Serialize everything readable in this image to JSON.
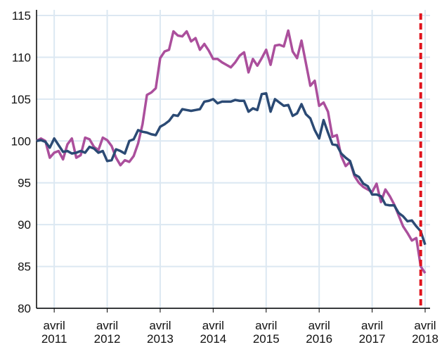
{
  "chart_data": {
    "type": "line",
    "categories": [
      null,
      null,
      null,
      null,
      "avril 2011",
      null,
      null,
      null,
      null,
      null,
      null,
      null,
      null,
      null,
      null,
      null,
      "avril 2012",
      null,
      null,
      null,
      null,
      null,
      null,
      null,
      null,
      null,
      null,
      null,
      "avril 2013",
      null,
      null,
      null,
      null,
      null,
      null,
      null,
      null,
      null,
      null,
      null,
      "avril 2014",
      null,
      null,
      null,
      null,
      null,
      null,
      null,
      null,
      null,
      null,
      null,
      "avril 2015",
      null,
      null,
      null,
      null,
      null,
      null,
      null,
      null,
      null,
      null,
      null,
      "avril 2016",
      null,
      null,
      null,
      null,
      null,
      null,
      null,
      null,
      null,
      null,
      null,
      "avril 2017",
      null,
      null,
      null,
      null,
      null,
      null,
      null,
      null,
      null,
      null,
      null,
      "avril 2018"
    ],
    "series": [
      {
        "color": "#ab4f9c",
        "values": [
          100.0,
          100.3,
          100.0,
          98.0,
          98.6,
          98.8,
          97.8,
          99.6,
          100.3,
          98.0,
          98.3,
          100.4,
          100.2,
          99.3,
          98.9,
          100.4,
          100.1,
          99.4,
          98.0,
          97.1,
          97.7,
          97.5,
          98.2,
          99.7,
          102.0,
          105.5,
          105.8,
          106.3,
          109.9,
          110.7,
          110.9,
          113.1,
          112.6,
          112.5,
          113.1,
          111.9,
          112.3,
          110.9,
          111.6,
          110.8,
          109.8,
          109.8,
          109.4,
          109.1,
          108.8,
          109.4,
          110.2,
          110.6,
          108.2,
          109.8,
          109.0,
          109.9,
          110.9,
          109.1,
          111.4,
          111.5,
          111.3,
          113.2,
          110.7,
          109.9,
          112.0,
          109.3,
          106.6,
          107.2,
          104.2,
          104.6,
          103.5,
          100.5,
          100.7,
          98.2,
          97.0,
          97.5,
          95.8,
          95.0,
          94.5,
          94.2,
          93.9,
          94.9,
          92.7,
          94.2,
          93.4,
          92.4,
          91.1,
          89.8,
          89.0,
          88.1,
          88.4,
          85.0,
          84.2
        ]
      },
      {
        "color": "#2b4a74",
        "values": [
          100.0,
          100.1,
          99.9,
          99.2,
          100.3,
          99.5,
          98.7,
          98.8,
          98.5,
          98.6,
          98.8,
          98.6,
          99.3,
          99.1,
          98.6,
          98.8,
          97.6,
          97.7,
          99.0,
          98.8,
          98.5,
          100.0,
          100.2,
          101.3,
          101.1,
          101.0,
          100.8,
          100.7,
          101.7,
          102.0,
          102.4,
          103.1,
          103.0,
          103.8,
          103.7,
          103.6,
          103.7,
          103.8,
          104.7,
          104.8,
          105.0,
          104.5,
          104.7,
          104.7,
          104.7,
          104.9,
          104.8,
          104.8,
          103.5,
          103.9,
          103.7,
          105.6,
          105.7,
          103.5,
          105.0,
          104.6,
          104.2,
          104.3,
          103.0,
          103.3,
          104.4,
          103.2,
          102.7,
          101.3,
          100.3,
          102.5,
          101.0,
          99.6,
          99.5,
          98.5,
          98.0,
          97.6,
          96.0,
          95.7,
          94.9,
          94.6,
          93.6,
          93.6,
          93.4,
          92.4,
          92.3,
          92.3,
          91.4,
          91.0,
          90.4,
          90.5,
          89.8,
          89.2,
          87.6
        ]
      }
    ],
    "ylim": [
      80,
      115
    ],
    "yticks": [
      80,
      85,
      90,
      95,
      100,
      105,
      110,
      115
    ],
    "grid": true,
    "vline": {
      "at": 87,
      "color": "#e0141e"
    }
  }
}
